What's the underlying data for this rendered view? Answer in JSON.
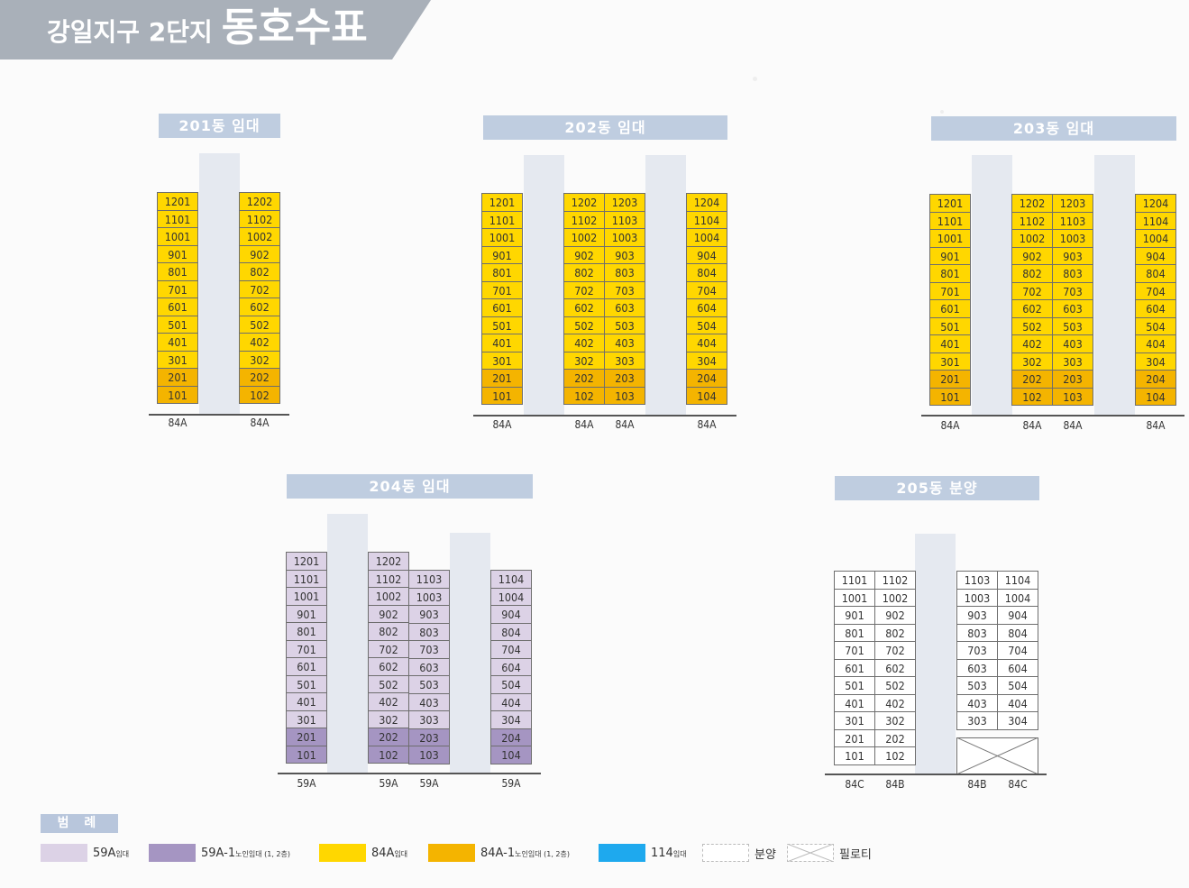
{
  "header": {
    "title_small": "강일지구 2단지",
    "title_big": "동호수표"
  },
  "colors": {
    "84A": "#ffd700",
    "84A_low": "#f4b400",
    "59A": "#dcd2e6",
    "59A_low": "#a595c2",
    "114": "#1ea9ee",
    "sale": "#ffffff",
    "tag": "#bfcde0"
  },
  "buildings": [
    {
      "name": "201동 임대",
      "types": [
        "84A",
        "84A"
      ],
      "columns": [
        [
          "1201",
          "1101",
          "1001",
          "901",
          "801",
          "701",
          "601",
          "501",
          "401",
          "301",
          "201",
          "101"
        ],
        [
          "1202",
          "1102",
          "1002",
          "902",
          "802",
          "702",
          "602",
          "502",
          "402",
          "302",
          "202",
          "102"
        ]
      ]
    },
    {
      "name": "202동 임대",
      "types": [
        "84A",
        "84A",
        "84A",
        "84A"
      ],
      "columns": [
        [
          "1201",
          "1101",
          "1001",
          "901",
          "801",
          "701",
          "601",
          "501",
          "401",
          "301",
          "201",
          "101"
        ],
        [
          "1202",
          "1102",
          "1002",
          "902",
          "802",
          "702",
          "602",
          "502",
          "402",
          "302",
          "202",
          "102"
        ],
        [
          "1203",
          "1103",
          "1003",
          "903",
          "803",
          "703",
          "603",
          "503",
          "403",
          "303",
          "203",
          "103"
        ],
        [
          "1204",
          "1104",
          "1004",
          "904",
          "804",
          "704",
          "604",
          "504",
          "404",
          "304",
          "204",
          "104"
        ]
      ]
    },
    {
      "name": "203동 임대",
      "types": [
        "84A",
        "84A",
        "84A",
        "84A"
      ],
      "columns": [
        [
          "1201",
          "1101",
          "1001",
          "901",
          "801",
          "701",
          "601",
          "501",
          "401",
          "301",
          "201",
          "101"
        ],
        [
          "1202",
          "1102",
          "1002",
          "902",
          "802",
          "702",
          "602",
          "502",
          "402",
          "302",
          "202",
          "102"
        ],
        [
          "1203",
          "1103",
          "1003",
          "903",
          "803",
          "703",
          "603",
          "503",
          "403",
          "303",
          "203",
          "103"
        ],
        [
          "1204",
          "1104",
          "1004",
          "904",
          "804",
          "704",
          "604",
          "504",
          "404",
          "304",
          "204",
          "104"
        ]
      ]
    },
    {
      "name": "204동 임대",
      "types": [
        "59A",
        "59A",
        "59A",
        "59A"
      ],
      "columns": [
        [
          "1201",
          "1101",
          "1001",
          "901",
          "801",
          "701",
          "601",
          "501",
          "401",
          "301",
          "201",
          "101"
        ],
        [
          "1202",
          "1102",
          "1002",
          "902",
          "802",
          "702",
          "602",
          "502",
          "402",
          "302",
          "202",
          "102"
        ],
        [
          "1103",
          "1003",
          "903",
          "803",
          "703",
          "603",
          "503",
          "403",
          "303",
          "203",
          "103"
        ],
        [
          "1104",
          "1004",
          "904",
          "804",
          "704",
          "604",
          "504",
          "404",
          "304",
          "204",
          "104"
        ]
      ]
    },
    {
      "name": "205동 분양",
      "types": [
        "84C",
        "84B",
        "84B",
        "84C"
      ],
      "columns": [
        [
          "1101",
          "1001",
          "901",
          "801",
          "701",
          "601",
          "501",
          "401",
          "301",
          "201",
          "101"
        ],
        [
          "1102",
          "1002",
          "902",
          "802",
          "702",
          "602",
          "502",
          "402",
          "302",
          "202",
          "102"
        ],
        [
          "1103",
          "1003",
          "903",
          "803",
          "703",
          "603",
          "503",
          "403",
          "303"
        ],
        [
          "1104",
          "1004",
          "904",
          "804",
          "704",
          "604",
          "504",
          "404",
          "304"
        ]
      ]
    }
  ],
  "legend": {
    "title": "범 례",
    "items": [
      {
        "label": "59A",
        "sub": "임대",
        "color": "#dcd2e6"
      },
      {
        "label": "59A-1",
        "sub": "노인임대 (1, 2층)",
        "color": "#a595c2"
      },
      {
        "label": "84A",
        "sub": "임대",
        "color": "#ffd700"
      },
      {
        "label": "84A-1",
        "sub": "노인임대 (1, 2층)",
        "color": "#f4b400"
      },
      {
        "label": "114",
        "sub": "임대",
        "color": "#1ea9ee"
      },
      {
        "label": "분양",
        "sub": "",
        "color": "#ffffff"
      },
      {
        "label": "필로티",
        "sub": "",
        "color": "#ffffff"
      }
    ]
  }
}
